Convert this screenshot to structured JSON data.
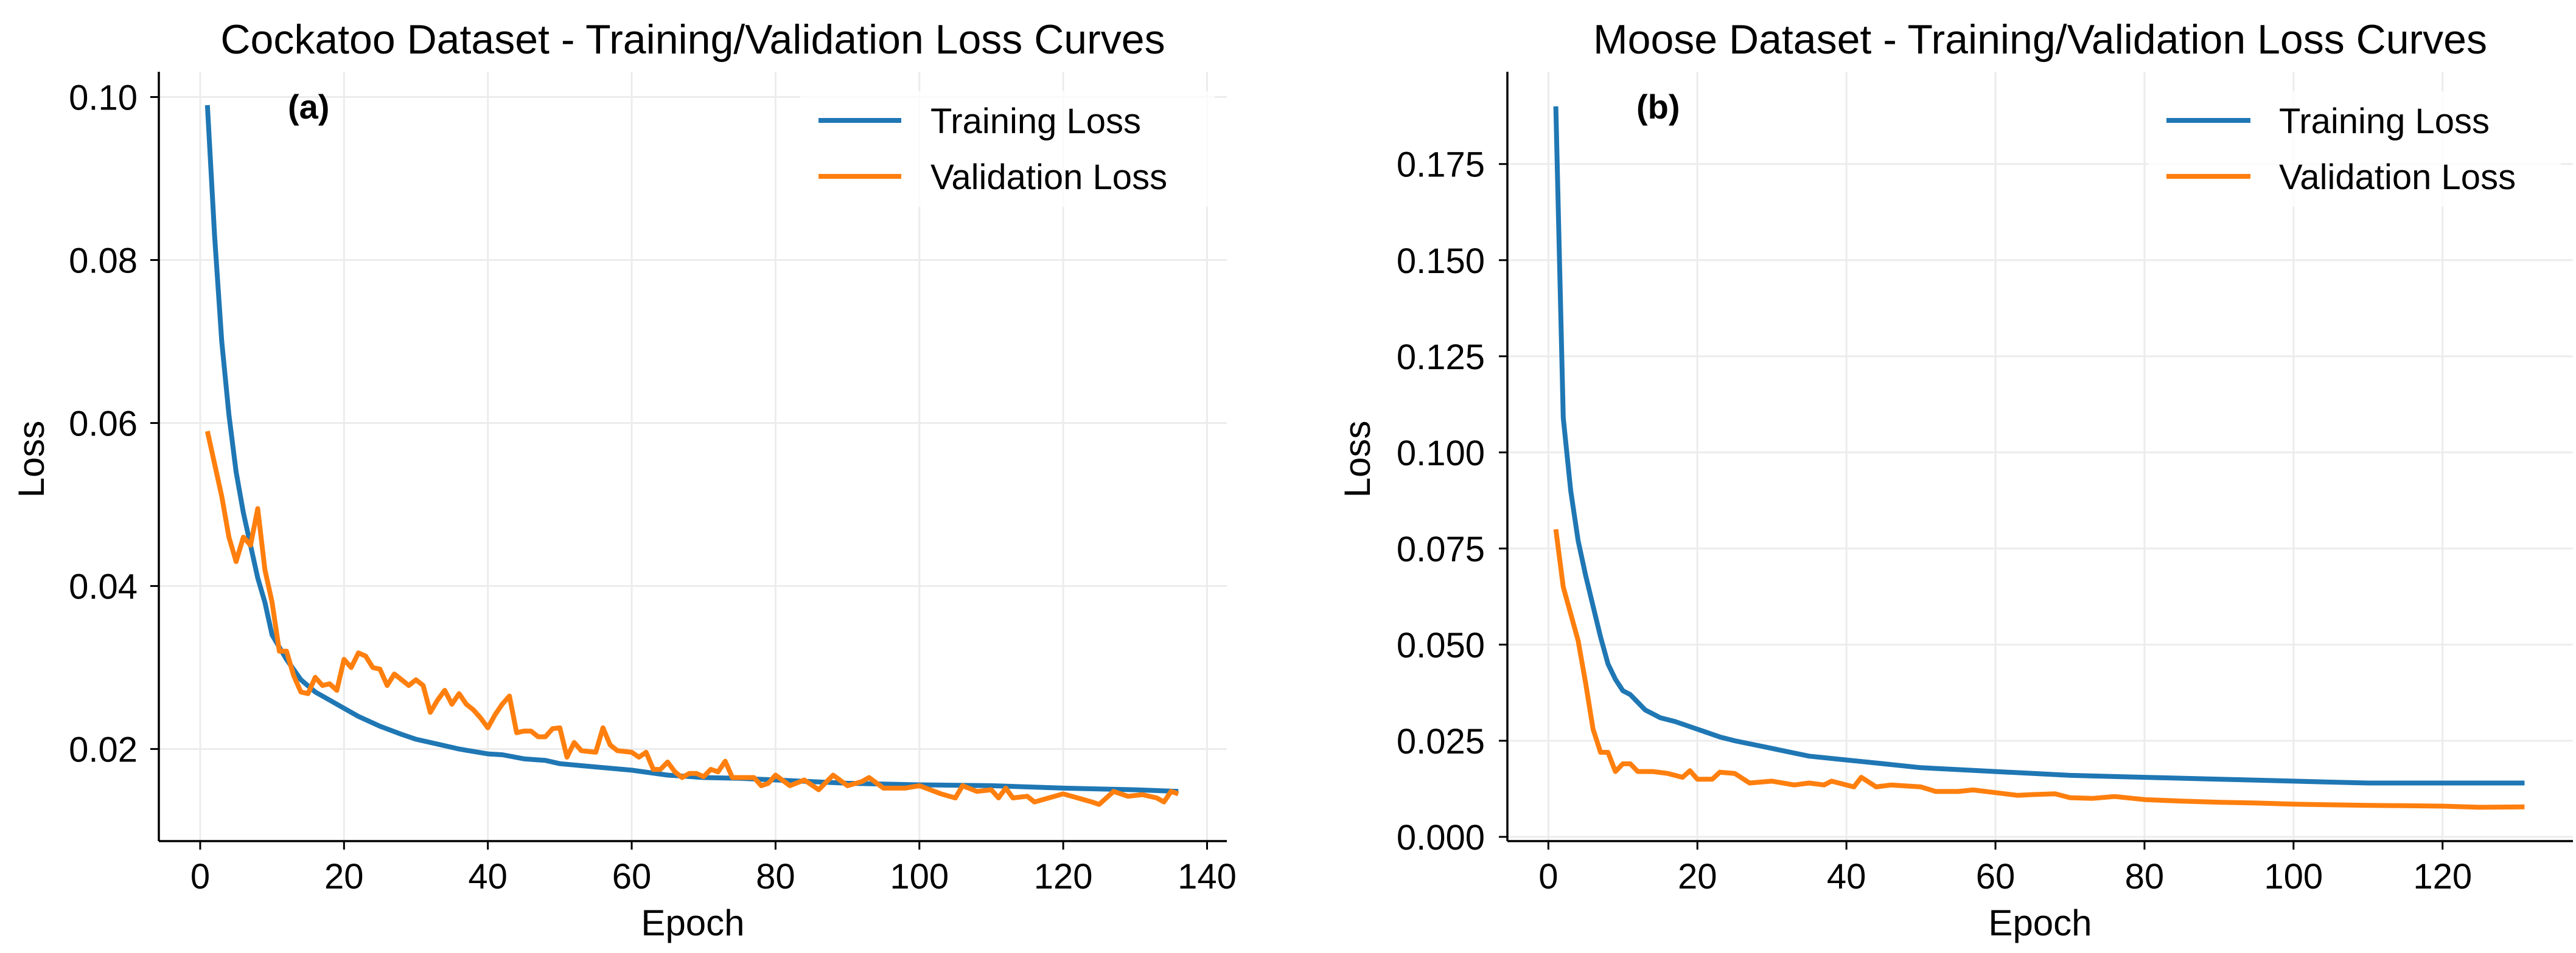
{
  "chart_data": [
    {
      "type": "line",
      "title": "Cockatoo Dataset - Training/Validation Loss Curves",
      "panel_label": "(a)",
      "xlabel": "Epoch",
      "ylabel": "Loss",
      "xlim": [
        -5.75,
        142.75
      ],
      "ylim": [
        0.0087,
        0.1031
      ],
      "xticks": [
        0,
        20,
        40,
        60,
        80,
        100,
        120,
        140
      ],
      "xtick_labels": [
        "0",
        "20",
        "40",
        "60",
        "80",
        "100",
        "120",
        "140"
      ],
      "yticks": [
        0.02,
        0.04,
        0.06,
        0.08,
        0.1
      ],
      "ytick_labels": [
        "0.02",
        "0.04",
        "0.06",
        "0.08",
        "0.10"
      ],
      "grid": true,
      "legend_position": "top-right",
      "series": [
        {
          "name": "Training Loss",
          "color": "#1f77b4",
          "points": [
            [
              1,
              0.099
            ],
            [
              2,
              0.083
            ],
            [
              3,
              0.07
            ],
            [
              4,
              0.061
            ],
            [
              5,
              0.054
            ],
            [
              6,
              0.049
            ],
            [
              7,
              0.045
            ],
            [
              8,
              0.041
            ],
            [
              9,
              0.038
            ],
            [
              10,
              0.034
            ],
            [
              12,
              0.031
            ],
            [
              14,
              0.0285
            ],
            [
              16,
              0.027
            ],
            [
              18,
              0.026
            ],
            [
              20,
              0.025
            ],
            [
              22,
              0.024
            ],
            [
              25,
              0.0228
            ],
            [
              28,
              0.0218
            ],
            [
              30,
              0.0212
            ],
            [
              33,
              0.0206
            ],
            [
              36,
              0.02
            ],
            [
              40,
              0.0194
            ],
            [
              42,
              0.0193
            ],
            [
              45,
              0.0188
            ],
            [
              48,
              0.0186
            ],
            [
              50,
              0.0182
            ],
            [
              55,
              0.0178
            ],
            [
              60,
              0.0174
            ],
            [
              65,
              0.0168
            ],
            [
              70,
              0.0165
            ],
            [
              75,
              0.0164
            ],
            [
              80,
              0.0162
            ],
            [
              90,
              0.0158
            ],
            [
              100,
              0.0156
            ],
            [
              110,
              0.0155
            ],
            [
              120,
              0.0152
            ],
            [
              130,
              0.015
            ],
            [
              136,
              0.0148
            ]
          ]
        },
        {
          "name": "Validation Loss",
          "color": "#ff7f0e",
          "points": [
            [
              1,
              0.059
            ],
            [
              2,
              0.055
            ],
            [
              3,
              0.051
            ],
            [
              4,
              0.046
            ],
            [
              5,
              0.043
            ],
            [
              6,
              0.046
            ],
            [
              7,
              0.045
            ],
            [
              8,
              0.0495
            ],
            [
              9,
              0.042
            ],
            [
              10,
              0.038
            ],
            [
              11,
              0.032
            ],
            [
              12,
              0.032
            ],
            [
              13,
              0.029
            ],
            [
              14,
              0.027
            ],
            [
              15,
              0.0268
            ],
            [
              16,
              0.0288
            ],
            [
              17,
              0.0278
            ],
            [
              18,
              0.028
            ],
            [
              19,
              0.0272
            ],
            [
              20,
              0.031
            ],
            [
              21,
              0.03
            ],
            [
              22,
              0.0318
            ],
            [
              23,
              0.0314
            ],
            [
              24,
              0.03
            ],
            [
              25,
              0.0298
            ],
            [
              26,
              0.0278
            ],
            [
              27,
              0.0292
            ],
            [
              28,
              0.0285
            ],
            [
              29,
              0.0278
            ],
            [
              30,
              0.0285
            ],
            [
              31,
              0.0278
            ],
            [
              32,
              0.0245
            ],
            [
              33,
              0.026
            ],
            [
              34,
              0.0272
            ],
            [
              35,
              0.0255
            ],
            [
              36,
              0.0268
            ],
            [
              37,
              0.0255
            ],
            [
              38,
              0.0248
            ],
            [
              39,
              0.0238
            ],
            [
              40,
              0.0226
            ],
            [
              41,
              0.0242
            ],
            [
              42,
              0.0255
            ],
            [
              43,
              0.0265
            ],
            [
              44,
              0.022
            ],
            [
              45,
              0.0222
            ],
            [
              46,
              0.0222
            ],
            [
              47,
              0.0215
            ],
            [
              48,
              0.0215
            ],
            [
              49,
              0.0225
            ],
            [
              50,
              0.0226
            ],
            [
              51,
              0.019
            ],
            [
              52,
              0.0208
            ],
            [
              53,
              0.0198
            ],
            [
              54,
              0.0197
            ],
            [
              55,
              0.0196
            ],
            [
              56,
              0.0226
            ],
            [
              57,
              0.0205
            ],
            [
              58,
              0.0198
            ],
            [
              59,
              0.0197
            ],
            [
              60,
              0.0196
            ],
            [
              61,
              0.019
            ],
            [
              62,
              0.0196
            ],
            [
              63,
              0.0175
            ],
            [
              64,
              0.0175
            ],
            [
              65,
              0.0184
            ],
            [
              66,
              0.0172
            ],
            [
              67,
              0.0165
            ],
            [
              68,
              0.017
            ],
            [
              69,
              0.017
            ],
            [
              70,
              0.0166
            ],
            [
              71,
              0.0175
            ],
            [
              72,
              0.0172
            ],
            [
              73,
              0.0185
            ],
            [
              74,
              0.0165
            ],
            [
              75,
              0.0165
            ],
            [
              76,
              0.0165
            ],
            [
              77,
              0.0165
            ],
            [
              78,
              0.0155
            ],
            [
              79,
              0.0158
            ],
            [
              80,
              0.0168
            ],
            [
              82,
              0.0155
            ],
            [
              84,
              0.0162
            ],
            [
              86,
              0.015
            ],
            [
              88,
              0.0168
            ],
            [
              90,
              0.0155
            ],
            [
              92,
              0.016
            ],
            [
              93,
              0.0165
            ],
            [
              95,
              0.0152
            ],
            [
              98,
              0.0152
            ],
            [
              100,
              0.0155
            ],
            [
              103,
              0.0145
            ],
            [
              105,
              0.014
            ],
            [
              106,
              0.0155
            ],
            [
              108,
              0.0148
            ],
            [
              110,
              0.015
            ],
            [
              111,
              0.014
            ],
            [
              112,
              0.0152
            ],
            [
              113,
              0.014
            ],
            [
              115,
              0.0142
            ],
            [
              116,
              0.0135
            ],
            [
              118,
              0.014
            ],
            [
              120,
              0.0145
            ],
            [
              122,
              0.014
            ],
            [
              124,
              0.0135
            ],
            [
              125,
              0.0132
            ],
            [
              127,
              0.0148
            ],
            [
              129,
              0.0142
            ],
            [
              131,
              0.0144
            ],
            [
              133,
              0.014
            ],
            [
              134,
              0.0135
            ],
            [
              135,
              0.0148
            ],
            [
              136,
              0.0145
            ]
          ]
        }
      ]
    },
    {
      "type": "line",
      "title": "Moose Dataset - Training/Validation Loss Curves",
      "panel_label": "(b)",
      "xlabel": "Epoch",
      "ylabel": "Loss",
      "xlim": [
        -5.5,
        137.5
      ],
      "ylim": [
        -0.0011,
        0.199
      ],
      "xticks": [
        0,
        20,
        40,
        60,
        80,
        100,
        120
      ],
      "xtick_labels": [
        "0",
        "20",
        "40",
        "60",
        "80",
        "100",
        "120"
      ],
      "yticks": [
        0.0,
        0.025,
        0.05,
        0.075,
        0.1,
        0.125,
        0.15,
        0.175
      ],
      "ytick_labels": [
        "0.000",
        "0.025",
        "0.050",
        "0.075",
        "0.100",
        "0.125",
        "0.150",
        "0.175"
      ],
      "grid": true,
      "legend_position": "top-right",
      "series": [
        {
          "name": "Training Loss",
          "color": "#1f77b4",
          "points": [
            [
              1,
              0.19
            ],
            [
              2,
              0.109
            ],
            [
              3,
              0.09
            ],
            [
              4,
              0.077
            ],
            [
              5,
              0.068
            ],
            [
              6,
              0.06
            ],
            [
              7,
              0.052
            ],
            [
              8,
              0.045
            ],
            [
              9,
              0.041
            ],
            [
              10,
              0.038
            ],
            [
              11,
              0.037
            ],
            [
              12,
              0.035
            ],
            [
              13,
              0.033
            ],
            [
              14,
              0.032
            ],
            [
              15,
              0.031
            ],
            [
              17,
              0.03
            ],
            [
              20,
              0.028
            ],
            [
              23,
              0.026
            ],
            [
              25,
              0.025
            ],
            [
              30,
              0.023
            ],
            [
              35,
              0.021
            ],
            [
              40,
              0.02
            ],
            [
              45,
              0.019
            ],
            [
              50,
              0.018
            ],
            [
              60,
              0.017
            ],
            [
              70,
              0.016
            ],
            [
              80,
              0.0155
            ],
            [
              90,
              0.015
            ],
            [
              100,
              0.0145
            ],
            [
              110,
              0.014
            ],
            [
              120,
              0.014
            ],
            [
              131,
              0.014
            ]
          ]
        },
        {
          "name": "Validation Loss",
          "color": "#ff7f0e",
          "points": [
            [
              1,
              0.08
            ],
            [
              2,
              0.065
            ],
            [
              3,
              0.058
            ],
            [
              4,
              0.051
            ],
            [
              5,
              0.04
            ],
            [
              6,
              0.028
            ],
            [
              7,
              0.022
            ],
            [
              8,
              0.022
            ],
            [
              9,
              0.017
            ],
            [
              10,
              0.019
            ],
            [
              11,
              0.019
            ],
            [
              12,
              0.017
            ],
            [
              14,
              0.017
            ],
            [
              16,
              0.0165
            ],
            [
              18,
              0.0155
            ],
            [
              19,
              0.0172
            ],
            [
              20,
              0.015
            ],
            [
              22,
              0.015
            ],
            [
              23,
              0.0168
            ],
            [
              25,
              0.0165
            ],
            [
              27,
              0.014
            ],
            [
              30,
              0.0145
            ],
            [
              33,
              0.0135
            ],
            [
              35,
              0.014
            ],
            [
              37,
              0.0135
            ],
            [
              38,
              0.0145
            ],
            [
              41,
              0.013
            ],
            [
              42,
              0.0155
            ],
            [
              44,
              0.013
            ],
            [
              46,
              0.0135
            ],
            [
              50,
              0.013
            ],
            [
              52,
              0.0118
            ],
            [
              55,
              0.0118
            ],
            [
              57,
              0.0122
            ],
            [
              60,
              0.0115
            ],
            [
              63,
              0.0108
            ],
            [
              65,
              0.011
            ],
            [
              68,
              0.0112
            ],
            [
              70,
              0.0102
            ],
            [
              73,
              0.01
            ],
            [
              76,
              0.0105
            ],
            [
              80,
              0.0097
            ],
            [
              85,
              0.0093
            ],
            [
              90,
              0.009
            ],
            [
              95,
              0.0088
            ],
            [
              100,
              0.0085
            ],
            [
              110,
              0.0082
            ],
            [
              120,
              0.008
            ],
            [
              125,
              0.0077
            ],
            [
              131,
              0.0078
            ]
          ]
        }
      ]
    }
  ]
}
